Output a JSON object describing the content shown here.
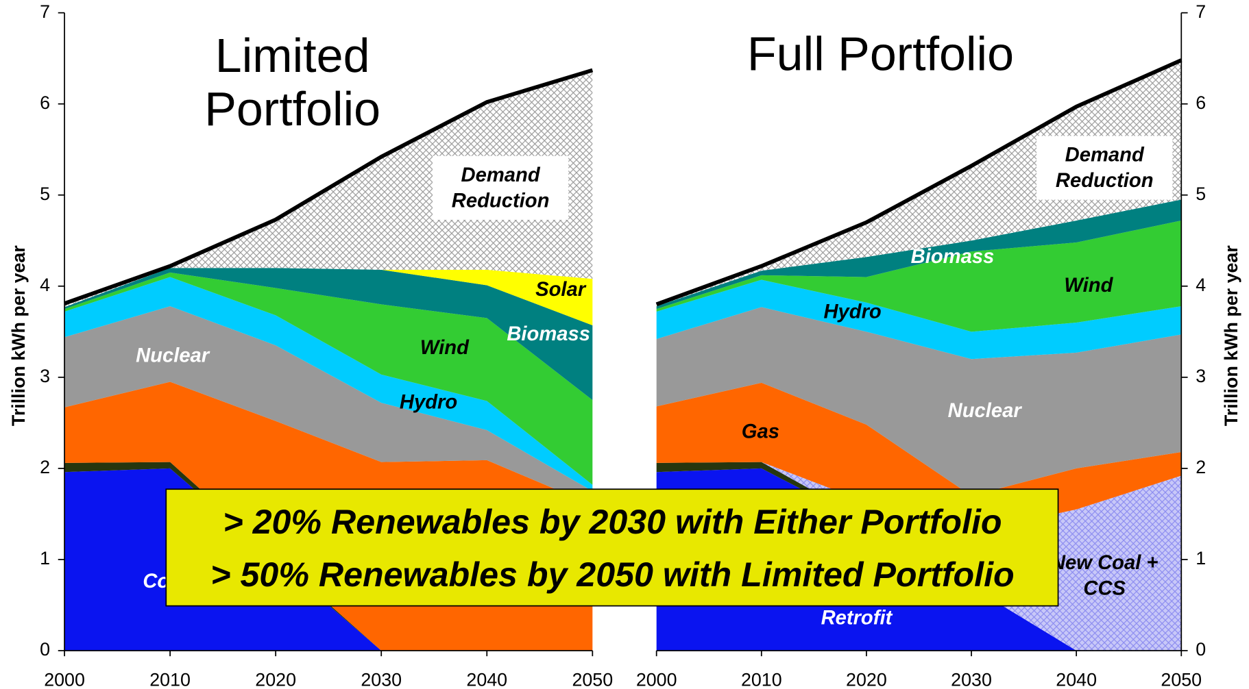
{
  "chart_data": [
    {
      "type": "area",
      "title": "Limited Portfolio",
      "y_label": "Trillion kWh per year",
      "axis_side": "left",
      "x": [
        2000,
        2010,
        2020,
        2030,
        2040,
        2050
      ],
      "xlim": [
        2000,
        2050
      ],
      "xticks": [
        2000,
        2010,
        2020,
        2030,
        2040,
        2050
      ],
      "ylim": [
        0,
        7
      ],
      "yticks": [
        0,
        1,
        2,
        3,
        4,
        5,
        6,
        7
      ],
      "series": [
        {
          "name": "Coal",
          "color": "#0a14f0",
          "values": [
            1.96,
            2.0,
            1.0,
            0,
            0,
            0
          ]
        },
        {
          "color": "#26360e",
          "values": [
            0.1,
            0.07,
            0.03,
            0,
            0,
            0
          ]
        },
        {
          "color": "#ff6600",
          "values": [
            0.61,
            0.88,
            1.49,
            2.07,
            2.09,
            1.6
          ]
        },
        {
          "name": "Nuclear",
          "color": "#999999",
          "values": [
            0.77,
            0.83,
            0.83,
            0.65,
            0.33,
            0.15
          ]
        },
        {
          "name": "Hydro",
          "color": "#00ccff",
          "values": [
            0.28,
            0.32,
            0.33,
            0.31,
            0.32,
            0.07
          ]
        },
        {
          "name": "Wind",
          "color": "#33cc33",
          "values": [
            0.03,
            0.05,
            0.3,
            0.77,
            0.91,
            0.93
          ]
        },
        {
          "name": "Biomass",
          "color": "#008080",
          "values": [
            0.02,
            0.05,
            0.22,
            0.38,
            0.36,
            0.82
          ]
        },
        {
          "name": "Solar",
          "color": "#ffff00",
          "values": [
            0,
            0,
            0,
            0,
            0.17,
            0.51
          ]
        },
        {
          "name": "Demand Reduction",
          "color": "#9a9a9a",
          "pattern": "crosshatch",
          "values": [
            0.04,
            0.02,
            0.53,
            1.24,
            1.84,
            2.29
          ]
        }
      ]
    },
    {
      "type": "area",
      "title": "Full Portfolio",
      "y_label": "Trillion kWh per year",
      "axis_side": "right",
      "x": [
        2000,
        2010,
        2020,
        2030,
        2040,
        2050
      ],
      "xlim": [
        2000,
        2050
      ],
      "xticks": [
        2000,
        2010,
        2020,
        2030,
        2040,
        2050
      ],
      "ylim": [
        0,
        7
      ],
      "yticks": [
        0,
        1,
        2,
        3,
        4,
        5,
        6,
        7
      ],
      "series": [
        {
          "name": "Retrofit",
          "color": "#0a14f0",
          "values": [
            1.96,
            2.0,
            1.4,
            0.7,
            0,
            0
          ]
        },
        {
          "color": "#26360e",
          "values": [
            0.1,
            0.07,
            0.03,
            0,
            0,
            0
          ]
        },
        {
          "name": "New Coal + CCS",
          "color": "#8c8cf0",
          "pattern": "crosshatch",
          "values": [
            0,
            0,
            0.2,
            0.6,
            1.55,
            1.92
          ]
        },
        {
          "name": "Gas",
          "color": "#ff6600",
          "values": [
            0.62,
            0.87,
            0.85,
            0.4,
            0.45,
            0.26
          ]
        },
        {
          "name": "Nuclear",
          "color": "#999999",
          "values": [
            0.74,
            0.83,
            1.02,
            1.5,
            1.27,
            1.29
          ]
        },
        {
          "name": "Hydro",
          "color": "#00ccff",
          "values": [
            0.3,
            0.3,
            0.32,
            0.3,
            0.33,
            0.31
          ]
        },
        {
          "name": "Wind",
          "color": "#33cc33",
          "values": [
            0.03,
            0.05,
            0.28,
            0.88,
            0.88,
            0.94
          ]
        },
        {
          "name": "Biomass",
          "color": "#008080",
          "values": [
            0.03,
            0.05,
            0.22,
            0.12,
            0.24,
            0.23
          ]
        },
        {
          "name": "Demand Reduction",
          "color": "#9a9a9a",
          "pattern": "crosshatch",
          "values": [
            0.02,
            0.05,
            0.38,
            0.82,
            1.25,
            1.53
          ]
        }
      ]
    }
  ],
  "annotation": {
    "lines": [
      "> 20% Renewables by 2030 with Either Portfolio",
      "> 50% Renewables by 2050 with Limited Portfolio"
    ],
    "color": "#e8e800"
  }
}
